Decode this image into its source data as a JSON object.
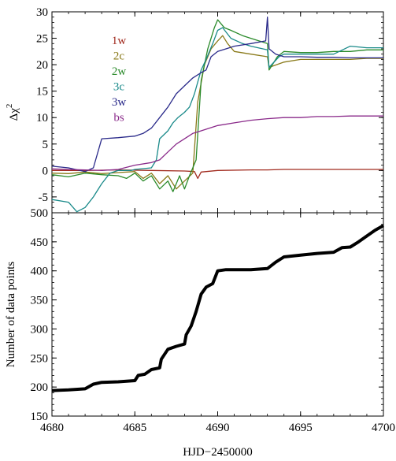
{
  "chart_data": [
    {
      "type": "line",
      "xlim": [
        4680,
        4700
      ],
      "ylim": [
        -8,
        30
      ],
      "xticks": [
        4680,
        4685,
        4690,
        4695,
        4700
      ],
      "yticks": [
        -5,
        0,
        5,
        10,
        15,
        20,
        25,
        30
      ],
      "show_x_tick_labels": false,
      "ylabel": "Δχ",
      "ylabel_sup": "2",
      "legend_position": "upper-left-inside",
      "series": [
        {
          "name": "1w",
          "color": "#a12a1e",
          "points": [
            [
              4680,
              0
            ],
            [
              4682,
              0
            ],
            [
              4684,
              0.1
            ],
            [
              4686,
              0
            ],
            [
              4688,
              -0.1
            ],
            [
              4688.6,
              -0.2
            ],
            [
              4688.8,
              -1.5
            ],
            [
              4689,
              -0.3
            ],
            [
              4690,
              0
            ],
            [
              4692,
              0.1
            ],
            [
              4693,
              0.1
            ],
            [
              4694,
              0.2
            ],
            [
              4696,
              0.2
            ],
            [
              4698,
              0.2
            ],
            [
              4700,
              0.2
            ]
          ]
        },
        {
          "name": "2c",
          "color": "#8a7a1a",
          "points": [
            [
              4680,
              -0.5
            ],
            [
              4681,
              -0.6
            ],
            [
              4682,
              -0.3
            ],
            [
              4683,
              -0.6
            ],
            [
              4684,
              -0.4
            ],
            [
              4685,
              -0.2
            ],
            [
              4685.5,
              -1.5
            ],
            [
              4686,
              -0.5
            ],
            [
              4686.5,
              -2.5
            ],
            [
              4687,
              -1
            ],
            [
              4687.5,
              -3.5
            ],
            [
              4688,
              -2
            ],
            [
              4688.5,
              -0.5
            ],
            [
              4688.8,
              13
            ],
            [
              4689.2,
              20
            ],
            [
              4689.6,
              23
            ],
            [
              4690,
              24.5
            ],
            [
              4690.3,
              25.5
            ],
            [
              4690.6,
              24
            ],
            [
              4691,
              22.5
            ],
            [
              4692,
              22
            ],
            [
              4693,
              21.5
            ],
            [
              4693.1,
              19.5
            ],
            [
              4694,
              20.5
            ],
            [
              4695,
              21
            ],
            [
              4696,
              21
            ],
            [
              4697,
              21
            ],
            [
              4698,
              21
            ],
            [
              4699,
              21.2
            ],
            [
              4700,
              21.2
            ]
          ]
        },
        {
          "name": "2w",
          "color": "#2a8a2a",
          "points": [
            [
              4680,
              -0.8
            ],
            [
              4681,
              -1.2
            ],
            [
              4682,
              -0.5
            ],
            [
              4683,
              -0.8
            ],
            [
              4684,
              -1
            ],
            [
              4684.5,
              -1.5
            ],
            [
              4685,
              -0.5
            ],
            [
              4685.5,
              -2
            ],
            [
              4686,
              -1
            ],
            [
              4686.5,
              -3.5
            ],
            [
              4687,
              -2
            ],
            [
              4687.3,
              -4
            ],
            [
              4687.7,
              -1
            ],
            [
              4688,
              -3.5
            ],
            [
              4688.3,
              -1
            ],
            [
              4688.7,
              2
            ],
            [
              4689,
              17
            ],
            [
              4689.4,
              23
            ],
            [
              4689.8,
              27
            ],
            [
              4690,
              28.5
            ],
            [
              4690.4,
              27
            ],
            [
              4690.8,
              26.5
            ],
            [
              4691.5,
              25.5
            ],
            [
              4692,
              25
            ],
            [
              4693,
              24
            ],
            [
              4693.1,
              19
            ],
            [
              4693.6,
              21.5
            ],
            [
              4694,
              22.5
            ],
            [
              4695,
              22.3
            ],
            [
              4696,
              22.3
            ],
            [
              4697,
              22.5
            ],
            [
              4698,
              22.5
            ],
            [
              4699,
              22.8
            ],
            [
              4700,
              22.8
            ]
          ]
        },
        {
          "name": "3c",
          "color": "#1a8a8a",
          "points": [
            [
              4680,
              -5.5
            ],
            [
              4681,
              -6
            ],
            [
              4681.5,
              -7.8
            ],
            [
              4682,
              -7
            ],
            [
              4682.5,
              -5
            ],
            [
              4683,
              -2.5
            ],
            [
              4683.5,
              -0.5
            ],
            [
              4684,
              0
            ],
            [
              4684.8,
              0
            ],
            [
              4685,
              0.2
            ],
            [
              4686,
              0.5
            ],
            [
              4686.3,
              2
            ],
            [
              4686.5,
              6
            ],
            [
              4687,
              7.5
            ],
            [
              4687.3,
              9
            ],
            [
              4687.6,
              10
            ],
            [
              4688,
              11
            ],
            [
              4688.3,
              12
            ],
            [
              4688.6,
              14.5
            ],
            [
              4689,
              19
            ],
            [
              4689.3,
              21
            ],
            [
              4689.7,
              24
            ],
            [
              4690,
              26.5
            ],
            [
              4690.3,
              27
            ],
            [
              4690.8,
              25
            ],
            [
              4691.5,
              24
            ],
            [
              4692,
              23.5
            ],
            [
              4693,
              22.8
            ],
            [
              4693.1,
              19.5
            ],
            [
              4693.7,
              21.5
            ],
            [
              4694,
              22
            ],
            [
              4695,
              22
            ],
            [
              4696,
              22
            ],
            [
              4697,
              22
            ],
            [
              4698,
              23.5
            ],
            [
              4699,
              23.2
            ],
            [
              4700,
              23.2
            ]
          ]
        },
        {
          "name": "3w",
          "color": "#2a2a8a",
          "points": [
            [
              4680,
              0.8
            ],
            [
              4681,
              0.5
            ],
            [
              4682,
              -0.2
            ],
            [
              4682.5,
              0.5
            ],
            [
              4683,
              6
            ],
            [
              4684,
              6.2
            ],
            [
              4685,
              6.5
            ],
            [
              4685.5,
              7
            ],
            [
              4686,
              8
            ],
            [
              4686.5,
              10
            ],
            [
              4687,
              12
            ],
            [
              4687.5,
              14.5
            ],
            [
              4688,
              16
            ],
            [
              4688.5,
              17.5
            ],
            [
              4689,
              18.5
            ],
            [
              4689.3,
              19
            ],
            [
              4689.6,
              21.5
            ],
            [
              4690,
              22.5
            ],
            [
              4690.5,
              23
            ],
            [
              4691,
              23.5
            ],
            [
              4692,
              24
            ],
            [
              4692.9,
              24.5
            ],
            [
              4693,
              29
            ],
            [
              4693.1,
              23
            ],
            [
              4693.5,
              22
            ],
            [
              4694,
              21.5
            ],
            [
              4695,
              21.5
            ],
            [
              4696,
              21.4
            ],
            [
              4697,
              21.4
            ],
            [
              4698,
              21.3
            ],
            [
              4699,
              21.3
            ],
            [
              4700,
              21.3
            ]
          ]
        },
        {
          "name": "bs",
          "color": "#8a2a8a",
          "points": [
            [
              4680,
              0.3
            ],
            [
              4681,
              0.2
            ],
            [
              4682,
              0.1
            ],
            [
              4683,
              0
            ],
            [
              4684,
              0.2
            ],
            [
              4685,
              1
            ],
            [
              4686,
              1.5
            ],
            [
              4686.5,
              2
            ],
            [
              4687,
              3.5
            ],
            [
              4687.5,
              5
            ],
            [
              4688,
              6
            ],
            [
              4688.5,
              7
            ],
            [
              4689,
              7.5
            ],
            [
              4689.5,
              8
            ],
            [
              4690,
              8.5
            ],
            [
              4691,
              9
            ],
            [
              4692,
              9.5
            ],
            [
              4693,
              9.8
            ],
            [
              4694,
              10
            ],
            [
              4695,
              10
            ],
            [
              4696,
              10.2
            ],
            [
              4697,
              10.2
            ],
            [
              4698,
              10.3
            ],
            [
              4699,
              10.3
            ],
            [
              4700,
              10.3
            ]
          ]
        }
      ]
    },
    {
      "type": "line",
      "xlim": [
        4680,
        4700
      ],
      "ylim": [
        150,
        500
      ],
      "xticks": [
        4680,
        4685,
        4690,
        4695,
        4700
      ],
      "yticks": [
        150,
        200,
        250,
        300,
        350,
        400,
        450,
        500
      ],
      "xlabel": "HJD−2450000",
      "ylabel": "Number of data points",
      "series": [
        {
          "color": "#000000",
          "points": [
            [
              4680,
              194
            ],
            [
              4681,
              195
            ],
            [
              4682,
              197
            ],
            [
              4682.5,
              205
            ],
            [
              4683,
              208
            ],
            [
              4684,
              209
            ],
            [
              4685,
              211
            ],
            [
              4685.2,
              220
            ],
            [
              4685.6,
              222
            ],
            [
              4686,
              230
            ],
            [
              4686.5,
              233
            ],
            [
              4686.6,
              248
            ],
            [
              4687,
              265
            ],
            [
              4687.5,
              270
            ],
            [
              4688,
              274
            ],
            [
              4688.1,
              290
            ],
            [
              4688.4,
              305
            ],
            [
              4688.7,
              330
            ],
            [
              4689,
              360
            ],
            [
              4689.3,
              372
            ],
            [
              4689.7,
              378
            ],
            [
              4690,
              400
            ],
            [
              4690.5,
              402
            ],
            [
              4691,
              402
            ],
            [
              4692,
              402
            ],
            [
              4692.5,
              403
            ],
            [
              4693,
              404
            ],
            [
              4693.5,
              415
            ],
            [
              4694,
              424
            ],
            [
              4695,
              427
            ],
            [
              4696,
              430
            ],
            [
              4697,
              432
            ],
            [
              4697.5,
              440
            ],
            [
              4698,
              441
            ],
            [
              4698.5,
              450
            ],
            [
              4699,
              460
            ],
            [
              4699.5,
              470
            ],
            [
              4700,
              478
            ]
          ]
        }
      ]
    }
  ],
  "legend": {
    "title_1w": "1w",
    "title_2c": "2c",
    "title_2w": "2w",
    "title_3c": "3c",
    "title_3w": "3w",
    "title_bs": "bs"
  }
}
